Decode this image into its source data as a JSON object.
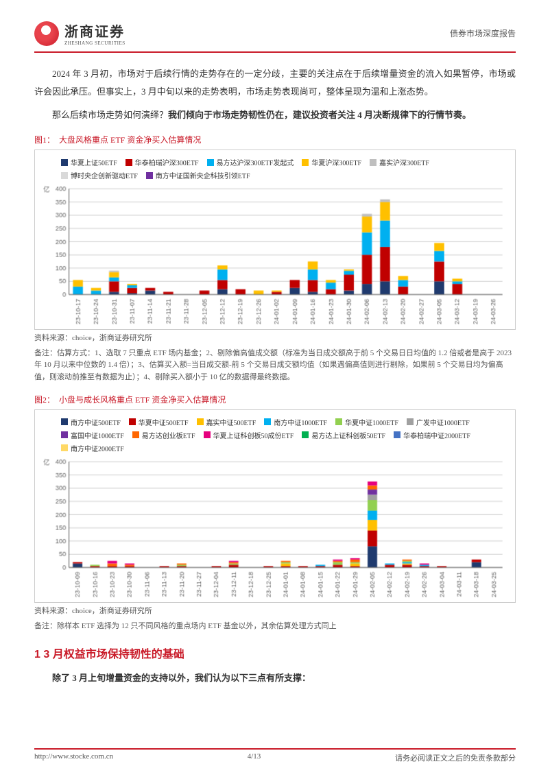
{
  "header": {
    "logo_name": "浙商证券",
    "logo_sub": "ZHESHANG SECURITIES",
    "right_text": "债券市场深度报告"
  },
  "paragraphs": {
    "p1": "2024 年 3 月初，市场对于后续行情的走势存在的一定分歧，主要的关注点在于后续增量资金的流入如果暂停，市场或许会因此承压。但事实上，3 月中旬以来的走势表明，市场走势表现尚可，整体呈现为温和上涨态势。",
    "p2a": "那么后续市场走势如何演绎？",
    "p2b": "我们倾向于市场走势韧性仍在，建议投资者关注 4 月决断规律下的行情节奏。"
  },
  "figure1": {
    "title": "图1：　大盘风格重点 ETF 资金净买入估算情况",
    "y_label": "亿",
    "y_min": 0,
    "y_max": 400,
    "y_step": 50,
    "legend": [
      {
        "label": "华夏上证50ETF",
        "color": "#1f3a6e"
      },
      {
        "label": "华泰柏瑞沪深300ETF",
        "color": "#c00000"
      },
      {
        "label": "易方达沪深300ETF发起式",
        "color": "#00b0f0"
      },
      {
        "label": "华夏沪深300ETF",
        "color": "#ffc000"
      },
      {
        "label": "嘉实沪深300ETF",
        "color": "#bfbfbf"
      },
      {
        "label": "博时央企创新驱动ETF",
        "color": "#d9d9d9"
      },
      {
        "label": "南方中证国新央企科技引领ETF",
        "color": "#7030a0"
      }
    ],
    "x_labels": [
      "23-10-17",
      "23-10-24",
      "23-10-31",
      "23-11-07",
      "23-11-14",
      "23-11-21",
      "23-11-28",
      "23-12-05",
      "23-12-12",
      "23-12-19",
      "23-12-26",
      "24-01-02",
      "24-01-09",
      "24-01-16",
      "24-01-23",
      "24-01-30",
      "24-02-06",
      "24-02-13",
      "24-02-20",
      "24-02-27",
      "24-03-05",
      "24-03-12",
      "24-03-19",
      "24-03-26"
    ],
    "data": [
      [
        0,
        0,
        30,
        25,
        0,
        0,
        0
      ],
      [
        0,
        0,
        15,
        10,
        0,
        0,
        0
      ],
      [
        10,
        40,
        15,
        20,
        5,
        0,
        0
      ],
      [
        5,
        20,
        10,
        5,
        0,
        0,
        0
      ],
      [
        15,
        10,
        0,
        0,
        0,
        0,
        0
      ],
      [
        0,
        10,
        0,
        0,
        0,
        0,
        0
      ],
      [
        0,
        0,
        0,
        0,
        0,
        0,
        0
      ],
      [
        0,
        15,
        0,
        0,
        0,
        0,
        0
      ],
      [
        20,
        35,
        40,
        15,
        0,
        0,
        0
      ],
      [
        0,
        20,
        0,
        0,
        0,
        0,
        0
      ],
      [
        0,
        0,
        0,
        15,
        0,
        0,
        0
      ],
      [
        0,
        10,
        0,
        5,
        0,
        0,
        0
      ],
      [
        25,
        30,
        0,
        0,
        0,
        0,
        0
      ],
      [
        10,
        45,
        40,
        30,
        0,
        0,
        0
      ],
      [
        0,
        20,
        25,
        10,
        0,
        0,
        0
      ],
      [
        15,
        60,
        15,
        5,
        0,
        0,
        0
      ],
      [
        40,
        110,
        85,
        60,
        10,
        0,
        0
      ],
      [
        50,
        130,
        100,
        70,
        10,
        0,
        0
      ],
      [
        0,
        30,
        25,
        15,
        0,
        0,
        0
      ],
      [
        0,
        0,
        0,
        0,
        0,
        0,
        0
      ],
      [
        50,
        75,
        40,
        30,
        0,
        0,
        0
      ],
      [
        0,
        40,
        10,
        10,
        0,
        0,
        0
      ],
      [
        0,
        0,
        0,
        0,
        0,
        0,
        0
      ],
      [
        0,
        0,
        0,
        0,
        0,
        0,
        0
      ]
    ],
    "source": "资料来源：choice，浙商证券研究所",
    "note": "备注：估算方式：1、选取 7 只重点 ETF 场内基金；2、剔除偏高值成交额（标准为当日成交额高于前 5 个交易日日均值的 1.2 倍或者是高于 2023 年 10 月以来中位数的 1.4 倍）；3、估算买入额=当日成交额-前 5 个交易日成交额均值（如果遇偏高值则进行剔除，如果前 5 个交易日均为偏高值，则滚动前推至有数据为止）；4、剔除买入额小于 10 亿的数据得最终数据。",
    "grid_color": "#d0d0d0",
    "bg_color": "#ffffff",
    "axis_color": "#666666",
    "label_fontsize": 9
  },
  "figure2": {
    "title": "图2：　小盘与成长风格重点 ETF 资金净买入估算情况",
    "y_label": "亿",
    "y_min": 0,
    "y_max": 400,
    "y_step": 50,
    "legend": [
      {
        "label": "南方中证500ETF",
        "color": "#1f3a6e"
      },
      {
        "label": "华夏中证500ETF",
        "color": "#c00000"
      },
      {
        "label": "嘉实中证500ETF",
        "color": "#ffc000"
      },
      {
        "label": "南方中证1000ETF",
        "color": "#00b0f0"
      },
      {
        "label": "华夏中证1000ETF",
        "color": "#92d050"
      },
      {
        "label": "广发中证1000ETF",
        "color": "#a0a0a0"
      },
      {
        "label": "富国中证1000ETF",
        "color": "#7030a0"
      },
      {
        "label": "易方达创业板ETF",
        "color": "#ff6600"
      },
      {
        "label": "华夏上证科创板50成份ETF",
        "color": "#e6007e"
      },
      {
        "label": "易方达上证科创板50ETF",
        "color": "#00b050"
      },
      {
        "label": "华泰柏瑞中证2000ETF",
        "color": "#4472c4"
      },
      {
        "label": "南方中证2000ETF",
        "color": "#ffd966"
      }
    ],
    "x_labels": [
      "23-10-09",
      "23-10-16",
      "23-10-23",
      "23-10-30",
      "23-11-06",
      "23-11-13",
      "23-11-20",
      "23-11-27",
      "23-12-04",
      "23-12-11",
      "23-12-18",
      "23-12-25",
      "24-01-01",
      "24-01-08",
      "24-01-15",
      "24-01-22",
      "24-01-29",
      "24-02-05",
      "24-02-12",
      "24-02-19",
      "24-02-26",
      "24-03-04",
      "24-03-11",
      "24-03-18",
      "24-03-25"
    ],
    "data": [
      [
        15,
        5,
        0,
        0,
        0,
        0,
        0,
        0,
        0,
        0,
        0,
        0
      ],
      [
        0,
        5,
        0,
        0,
        5,
        0,
        0,
        0,
        0,
        0,
        0,
        0
      ],
      [
        0,
        5,
        0,
        0,
        0,
        0,
        0,
        10,
        10,
        0,
        0,
        0
      ],
      [
        0,
        5,
        0,
        0,
        0,
        0,
        0,
        5,
        5,
        0,
        0,
        0
      ],
      [
        0,
        0,
        0,
        0,
        0,
        0,
        0,
        0,
        0,
        0,
        0,
        0
      ],
      [
        0,
        5,
        0,
        0,
        0,
        0,
        0,
        0,
        0,
        0,
        0,
        0
      ],
      [
        0,
        5,
        0,
        0,
        5,
        0,
        0,
        5,
        0,
        0,
        0,
        0
      ],
      [
        0,
        0,
        0,
        0,
        0,
        0,
        0,
        0,
        0,
        0,
        0,
        0
      ],
      [
        0,
        5,
        0,
        0,
        0,
        0,
        0,
        0,
        0,
        0,
        0,
        0
      ],
      [
        0,
        10,
        0,
        0,
        5,
        0,
        0,
        5,
        5,
        0,
        0,
        0
      ],
      [
        0,
        0,
        0,
        0,
        0,
        0,
        0,
        0,
        0,
        0,
        0,
        0
      ],
      [
        0,
        5,
        0,
        0,
        0,
        0,
        0,
        0,
        0,
        0,
        0,
        0
      ],
      [
        0,
        5,
        10,
        0,
        5,
        0,
        0,
        5,
        0,
        0,
        0,
        0
      ],
      [
        0,
        5,
        0,
        0,
        0,
        0,
        0,
        0,
        0,
        0,
        0,
        0
      ],
      [
        0,
        5,
        0,
        5,
        0,
        0,
        0,
        0,
        0,
        0,
        0,
        0
      ],
      [
        0,
        10,
        0,
        0,
        10,
        0,
        0,
        5,
        5,
        0,
        0,
        0
      ],
      [
        0,
        5,
        10,
        0,
        5,
        0,
        0,
        10,
        5,
        0,
        0,
        0
      ],
      [
        80,
        60,
        40,
        35,
        40,
        20,
        20,
        15,
        15,
        0,
        0,
        0
      ],
      [
        0,
        10,
        0,
        5,
        0,
        0,
        0,
        0,
        0,
        0,
        0,
        0
      ],
      [
        0,
        10,
        5,
        5,
        5,
        0,
        0,
        5,
        0,
        0,
        0,
        0
      ],
      [
        0,
        5,
        0,
        5,
        0,
        0,
        0,
        0,
        5,
        0,
        0,
        0
      ],
      [
        0,
        5,
        0,
        0,
        0,
        0,
        0,
        0,
        0,
        0,
        0,
        0
      ],
      [
        0,
        0,
        0,
        0,
        0,
        0,
        0,
        0,
        0,
        0,
        0,
        0
      ],
      [
        20,
        10,
        0,
        0,
        0,
        0,
        0,
        0,
        0,
        0,
        0,
        0
      ],
      [
        0,
        0,
        0,
        0,
        0,
        0,
        0,
        0,
        0,
        0,
        0,
        0
      ]
    ],
    "source": "资料来源：choice，浙商证券研究所",
    "note": "备注：除样本 ETF 选择为 12 只不同风格的重点场内 ETF 基金以外，其余估算处理方式同上",
    "grid_color": "#d0d0d0",
    "bg_color": "#ffffff",
    "axis_color": "#666666",
    "label_fontsize": 9
  },
  "section1": {
    "heading": "1 3 月权益市场保持韧性的基础",
    "text": "除了 3 月上旬增量资金的支持以外，我们认为以下三点有所支撑："
  },
  "footer": {
    "left": "http://www.stocke.com.cn",
    "center": "4/13",
    "right": "请务必阅读正文之后的免责条款部分"
  }
}
